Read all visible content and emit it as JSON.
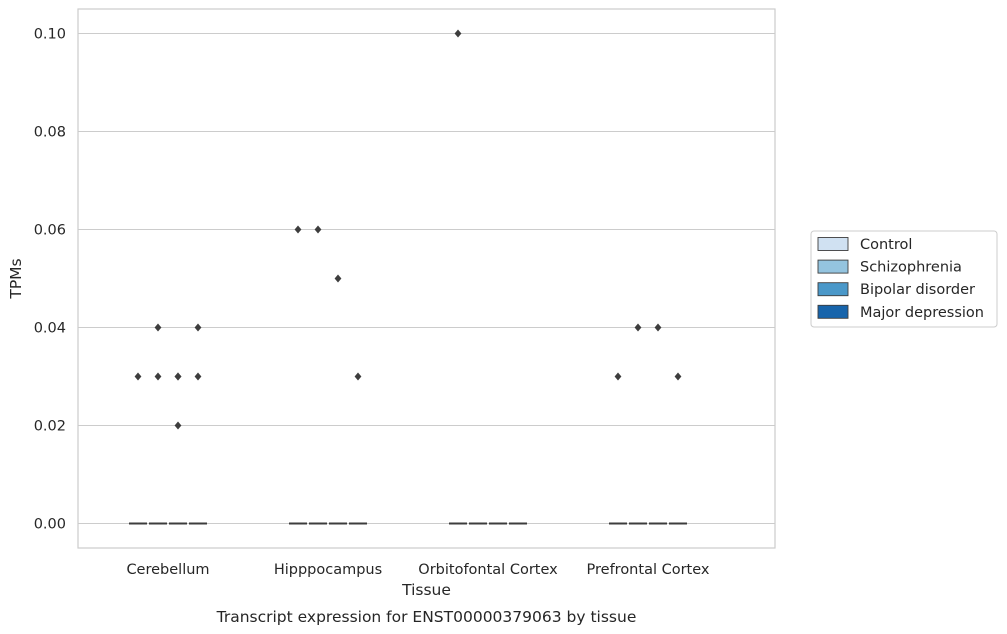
{
  "chart_data": {
    "type": "box",
    "title": "",
    "xlabel": "Tissue",
    "ylabel": "TPMs",
    "caption": "Transcript expression for ENST00000379063 by tissue",
    "ylim": [
      -0.005,
      0.105
    ],
    "yticks": [
      "0.00",
      "0.02",
      "0.04",
      "0.06",
      "0.08",
      "0.10"
    ],
    "ytick_values": [
      0,
      0.02,
      0.04,
      0.06,
      0.08,
      0.1
    ],
    "grid": true,
    "legend_position": "right",
    "categories": [
      "Cerebellum",
      "Hipppocampus",
      "Orbitofontal Cortex",
      "Prefrontal Cortex"
    ],
    "series": [
      {
        "name": "Control",
        "color": "#d0e1f2",
        "median": [
          0,
          0,
          0,
          0
        ],
        "outliers": [
          [
            0.03
          ],
          [
            0.06
          ],
          [
            0.1
          ],
          [
            0.03
          ]
        ]
      },
      {
        "name": "Schizophrenia",
        "color": "#94c4df",
        "median": [
          0,
          0,
          0,
          0
        ],
        "outliers": [
          [
            0.04,
            0.03
          ],
          [
            0.06
          ],
          [],
          [
            0.04
          ]
        ]
      },
      {
        "name": "Bipolar disorder",
        "color": "#4a98c9",
        "median": [
          0,
          0,
          0,
          0
        ],
        "outliers": [
          [
            0.03,
            0.02,
            0.03
          ],
          [
            0.05
          ],
          [],
          [
            0.04
          ]
        ]
      },
      {
        "name": "Major depression",
        "color": "#1764ab",
        "median": [
          0,
          0,
          0,
          0
        ],
        "outliers": [
          [
            0.04,
            0.03
          ],
          [
            0.03
          ],
          [],
          [
            0.03
          ]
        ]
      }
    ]
  }
}
